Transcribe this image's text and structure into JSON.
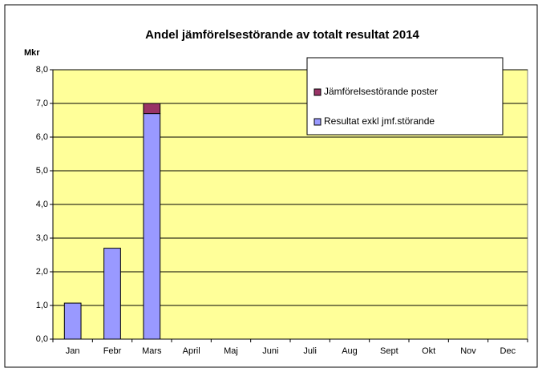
{
  "chart_data": {
    "type": "stacked_bar",
    "title": "Andel jämförelsestörande av totalt resultat 2014",
    "y_label": "Mkr",
    "categories": [
      "Jan",
      "Febr",
      "Mars",
      "April",
      "Maj",
      "Juni",
      "Juli",
      "Aug",
      "Sept",
      "Okt",
      "Nov",
      "Dec"
    ],
    "series": [
      {
        "name": "Resultat exkl jmf.störande",
        "color": "#9999ff",
        "values": [
          1.07,
          2.7,
          6.7,
          null,
          null,
          null,
          null,
          null,
          null,
          null,
          null,
          null
        ]
      },
      {
        "name": "Jämförelsestörande poster",
        "color": "#993366",
        "values": [
          null,
          null,
          0.3,
          null,
          null,
          null,
          null,
          null,
          null,
          null,
          null,
          null
        ]
      }
    ],
    "ylim": [
      0,
      8
    ],
    "yticks": [
      {
        "value": 0,
        "label": "0,0"
      },
      {
        "value": 1,
        "label": "1,0"
      },
      {
        "value": 2,
        "label": "2,0"
      },
      {
        "value": 3,
        "label": "3,0"
      },
      {
        "value": 4,
        "label": "4,0"
      },
      {
        "value": 5,
        "label": "5,0"
      },
      {
        "value": 6,
        "label": "6,0"
      },
      {
        "value": 7,
        "label": "7,0"
      },
      {
        "value": 8,
        "label": "8,0"
      }
    ],
    "grid": true,
    "legend": "upper right",
    "plot_background": "#ffff99"
  }
}
